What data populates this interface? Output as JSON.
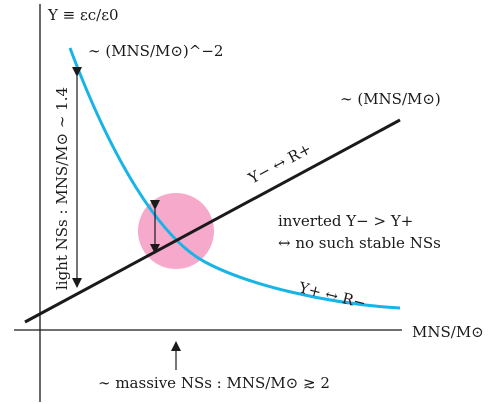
{
  "diagram": {
    "y_axis_label": "Y ≡ εc/ε0",
    "x_axis_label": "MNS/M⊙",
    "steep_curve_label": "∼ (MNS/M⊙)^−2",
    "line_label": "∼ (MNS/M⊙)",
    "line_annotation": "Y− ↔ R+",
    "curve_annotation": "Y+ ↔ R−",
    "inverted_label_line1": "inverted Y− > Y+",
    "inverted_label_line2": "↔ no such stable NSs",
    "light_ns_label": "light NSs : MNS/M⊙ ∼ 1.4",
    "massive_ns_label": "∼ massive NSs : MNS/M⊙ ≳ 2",
    "colors": {
      "curve": "#18b4e6",
      "line": "#1a1a1a",
      "circle": "#f49ac2"
    }
  }
}
